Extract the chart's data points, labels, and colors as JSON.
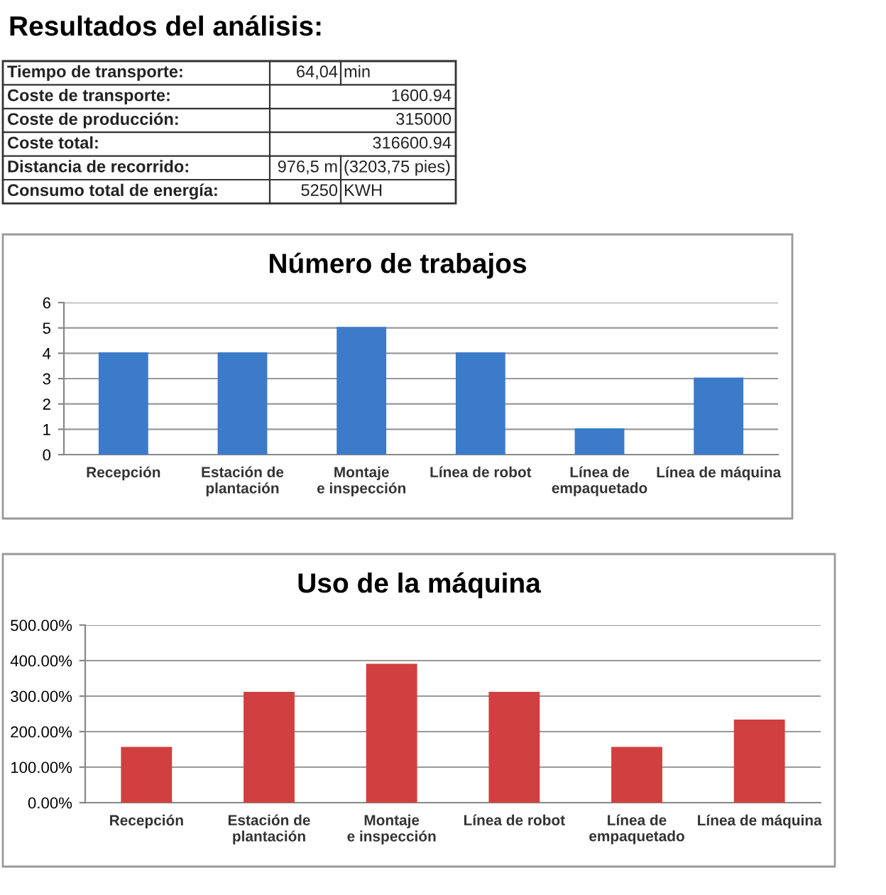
{
  "chart_data": [
    {
      "type": "other",
      "title": "Resultados del análisis:",
      "annotations": [
        [
          "Tiempo de transporte:",
          "64,04",
          "min"
        ],
        [
          "Coste de transporte:",
          "1600.94",
          null
        ],
        [
          "Coste de producción:",
          "315000",
          null
        ],
        [
          "Coste total:",
          "316600.94",
          null
        ],
        [
          "Distancia de recorrido:",
          "976,5 m",
          "(3203,75 pies)"
        ],
        [
          "Consumo total de energía:",
          "5250",
          "KWH"
        ]
      ]
    },
    {
      "type": "bar",
      "title": "Número de trabajos",
      "categories": [
        "Recepción",
        "Estación de\nplantación",
        "Montaje\ne inspección",
        "Línea de robot",
        "Línea de\nempaquetado",
        "Línea de máquina"
      ],
      "values": [
        4,
        4,
        5,
        4,
        1,
        3
      ],
      "color": "#3c7bc9",
      "ylim": [
        0,
        6
      ],
      "yticks": [
        0,
        1,
        2,
        3,
        4,
        5,
        6
      ],
      "grid": "y"
    },
    {
      "type": "bar",
      "title": "Uso de la máquina",
      "categories": [
        "Recepción",
        "Estación de\nplantación",
        "Montaje\ne inspección",
        "Línea de robot",
        "Línea de\nempaquetado",
        "Línea de máquina"
      ],
      "values": [
        154,
        309,
        388,
        309,
        154,
        231
      ],
      "color": "#d04040",
      "ylim": [
        0,
        500
      ],
      "yticks": [
        {
          "value": 0,
          "label": "0.00%"
        },
        {
          "value": 100,
          "label": "100.00%"
        },
        {
          "value": 200,
          "label": "200.00%"
        },
        {
          "value": 300,
          "label": "300.00%"
        },
        {
          "value": 400,
          "label": "400.00%"
        },
        {
          "value": 500,
          "label": "500.00%"
        }
      ],
      "grid": "y"
    }
  ]
}
